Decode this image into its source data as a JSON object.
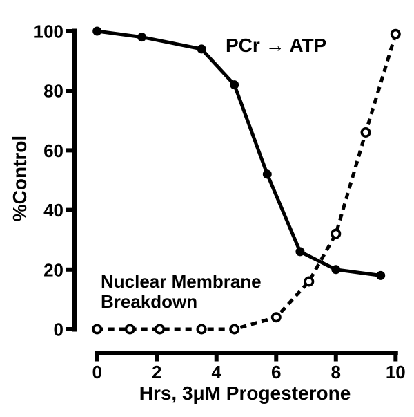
{
  "figure": {
    "background": "#ffffff",
    "ink": "#000000"
  },
  "chart_data": {
    "type": "line",
    "title": "",
    "xlabel": "Hrs, 3μM Progesterone",
    "ylabel": "%Control",
    "xlim": [
      0,
      10
    ],
    "ylim": [
      0,
      100
    ],
    "xticks": [
      0,
      2,
      4,
      6,
      8,
      10
    ],
    "xtick_labels": [
      "0",
      "2",
      "4",
      "6",
      "8",
      "10"
    ],
    "yticks": [
      0,
      20,
      40,
      60,
      80,
      100
    ],
    "ytick_labels": [
      "0",
      "20",
      "40",
      "60",
      "80",
      "100"
    ],
    "grid": false,
    "legend_position": "inline-annotations",
    "series": [
      {
        "name": "PCr → ATP",
        "line_style": "solid",
        "marker": "filled-circle",
        "color": "#000000",
        "x": [
          0,
          1.5,
          3.5,
          4.6,
          5.7,
          6.8,
          8,
          9.5
        ],
        "y": [
          100,
          98,
          94,
          82,
          52,
          26,
          20,
          18
        ]
      },
      {
        "name": "Nuclear Membrane Breakdown",
        "line_style": "dashed",
        "marker": "open-circle",
        "color": "#000000",
        "x": [
          0,
          1.1,
          2.1,
          3.5,
          4.6,
          6,
          7.1,
          8,
          9,
          10
        ],
        "y": [
          0,
          0,
          0,
          0,
          0,
          4,
          16,
          32,
          66,
          99
        ]
      }
    ],
    "annotations": {
      "series1_label": "PCr → ATP",
      "series2_label_line1": "Nuclear Membrane",
      "series2_label_line2": "Breakdown"
    }
  }
}
